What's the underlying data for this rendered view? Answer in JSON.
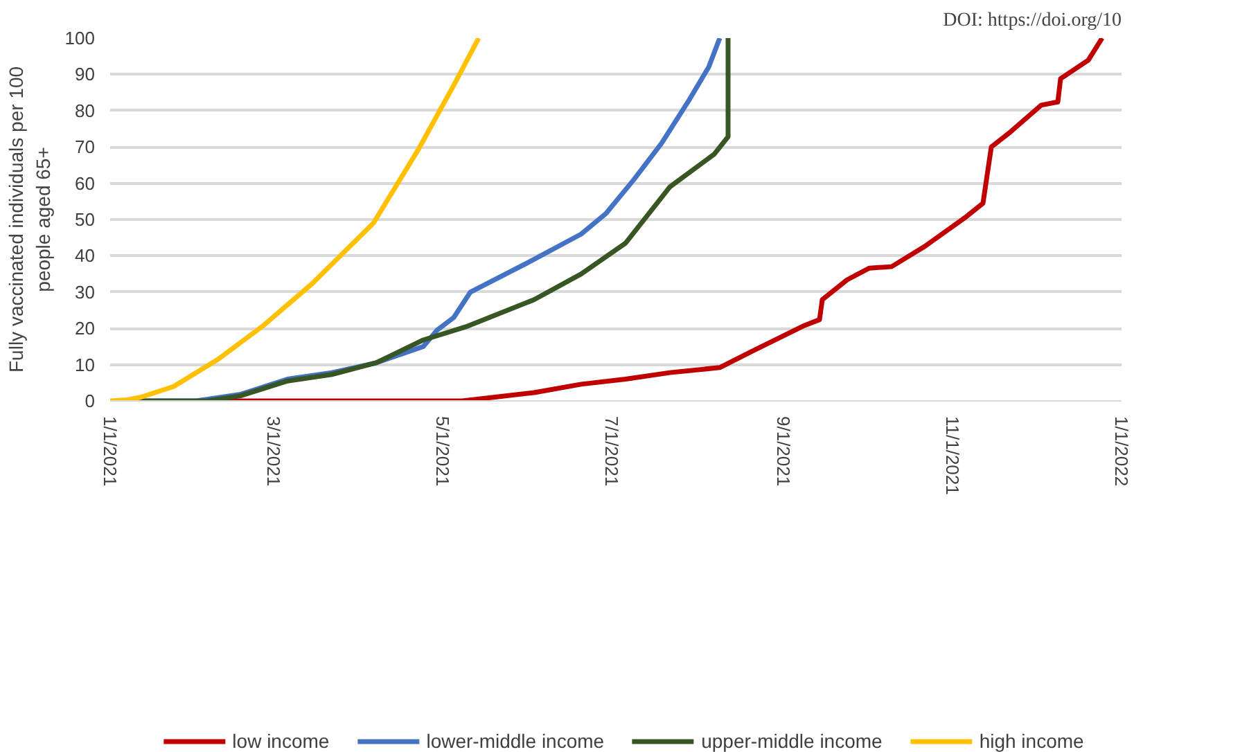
{
  "chart_data": {
    "type": "line",
    "ylabel": "Fully vaccinated individuals per 100\npeople aged 65+",
    "annotations": [
      "DOI: https://doi.org/10"
    ],
    "xlim": [
      "2021-01-01",
      "2022-01-01"
    ],
    "xticks": [
      {
        "value": "2021-01-01",
        "label": "1/1/2021"
      },
      {
        "value": "2021-03-01",
        "label": "3/1/2021"
      },
      {
        "value": "2021-05-01",
        "label": "5/1/2021"
      },
      {
        "value": "2021-07-01",
        "label": "7/1/2021"
      },
      {
        "value": "2021-09-01",
        "label": "9/1/2021"
      },
      {
        "value": "2021-11-01",
        "label": "11/1/2021"
      },
      {
        "value": "2022-01-01",
        "label": "1/1/2022"
      }
    ],
    "ylim": [
      0,
      100
    ],
    "yticks": [
      0,
      10,
      20,
      30,
      40,
      50,
      60,
      70,
      80,
      90,
      100
    ],
    "grid": "y",
    "legend": "bottom",
    "marker": "none",
    "line_style": "solid",
    "series": [
      {
        "name": "low income",
        "color": "#c00000",
        "x": [
          "2021-02-10",
          "2021-05-08",
          "2021-06-03",
          "2021-06-20",
          "2021-07-06",
          "2021-07-22",
          "2021-08-09",
          "2021-08-22",
          "2021-09-08",
          "2021-09-14",
          "2021-09-15",
          "2021-09-24",
          "2021-10-02",
          "2021-10-10",
          "2021-10-22",
          "2021-11-06",
          "2021-11-12",
          "2021-11-15",
          "2021-11-22",
          "2021-12-03",
          "2021-12-09",
          "2021-12-10",
          "2021-12-20",
          "2021-12-25"
        ],
        "values": [
          0,
          0,
          2.3,
          4.6,
          6,
          7.8,
          9.2,
          14.2,
          20.6,
          22.4,
          27.9,
          33.4,
          36.6,
          37,
          42.6,
          50.8,
          54.5,
          70,
          74.2,
          81.5,
          82.4,
          88.8,
          93.9,
          100
        ]
      },
      {
        "name": "lower-middle income",
        "color": "#4472c4",
        "x": [
          "2021-01-10",
          "2021-02-01",
          "2021-02-17",
          "2021-03-06",
          "2021-03-22",
          "2021-04-07",
          "2021-04-24",
          "2021-04-29",
          "2021-05-05",
          "2021-05-11",
          "2021-06-02",
          "2021-06-20",
          "2021-06-29",
          "2021-07-09",
          "2021-07-19",
          "2021-07-29",
          "2021-08-05",
          "2021-08-09"
        ],
        "values": [
          0,
          0,
          1.8,
          6,
          7.8,
          10.5,
          15,
          19.5,
          23,
          30,
          38.6,
          46,
          51.7,
          61,
          71,
          83,
          92,
          100
        ]
      },
      {
        "name": "upper-middle income",
        "color": "#375623",
        "x": [
          "2021-01-10",
          "2021-02-05",
          "2021-02-17",
          "2021-03-06",
          "2021-03-22",
          "2021-04-07",
          "2021-04-24",
          "2021-05-10",
          "2021-06-03",
          "2021-06-20",
          "2021-07-06",
          "2021-07-22",
          "2021-08-07",
          "2021-08-12",
          "2021-08-12"
        ],
        "values": [
          0,
          0,
          1.4,
          5.5,
          7.3,
          10.5,
          16.8,
          20.6,
          27.9,
          35,
          43.5,
          59,
          68,
          72.8,
          100
        ]
      },
      {
        "name": "high income",
        "color": "#ffc000",
        "x": [
          "2021-01-01",
          "2021-01-07",
          "2021-01-12",
          "2021-01-24",
          "2021-02-09",
          "2021-02-25",
          "2021-03-15",
          "2021-04-06",
          "2021-04-22",
          "2021-05-05",
          "2021-05-14"
        ],
        "values": [
          0,
          0.3,
          1,
          4,
          11.5,
          20.6,
          32.4,
          49,
          69,
          87,
          100
        ]
      }
    ]
  }
}
